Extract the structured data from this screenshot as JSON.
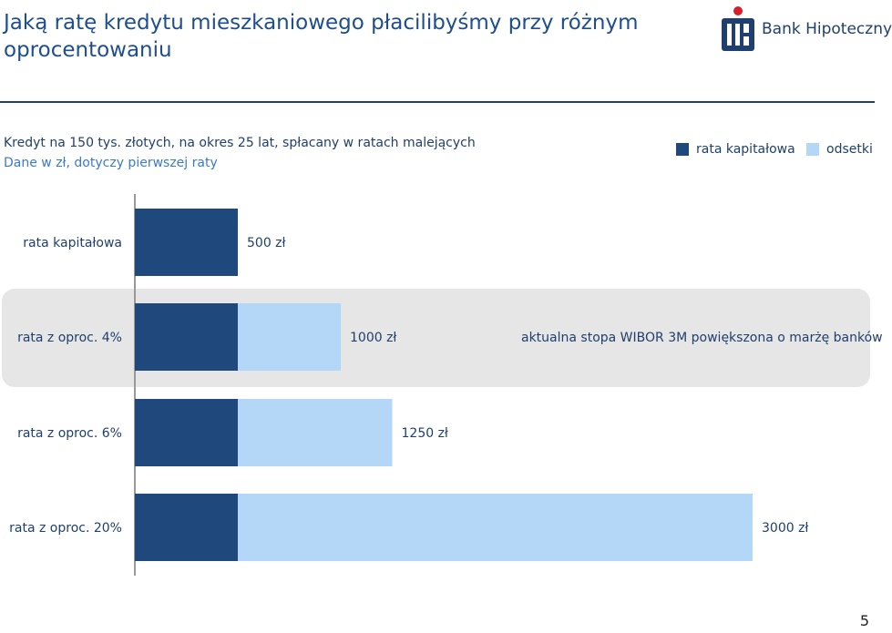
{
  "header": {
    "title": "Jaką ratę kredytu mieszkaniowego płacilibyśmy przy różnym oprocentowaniu",
    "logo_text": "Bank Hipoteczny"
  },
  "subtitle": "Kredyt na 150 tys. złotych, na okres 25 lat, spłacany w ratach malejących",
  "subtitle2": "Dane w zł, dotyczy pierwszej raty",
  "colors": {
    "principal": "#1f497d",
    "interest": "#b4d7f7",
    "brand": "#1f4e8c"
  },
  "chart_data": {
    "type": "bar",
    "orientation": "horizontal",
    "stacked": true,
    "categories": [
      "rata kapitałowa",
      "rata z oproc. 4%",
      "rata z oproc. 6%",
      "rata z oproc. 20%"
    ],
    "series": [
      {
        "name": "rata kapitałowa",
        "values": [
          500,
          500,
          500,
          500
        ]
      },
      {
        "name": "odsetki",
        "values": [
          0,
          500,
          750,
          2500
        ]
      }
    ],
    "totals_labels": [
      "500 zł",
      "1000 zł",
      "1250 zł",
      "3000 zł"
    ],
    "annotations": [
      {
        "category": "rata z oproc. 4%",
        "text": "aktualna stopa WIBOR 3M powiększona o marżę banków"
      }
    ],
    "xlim": [
      0,
      3000
    ],
    "legend_position": "top-right",
    "grid": false
  },
  "page_number": "5"
}
